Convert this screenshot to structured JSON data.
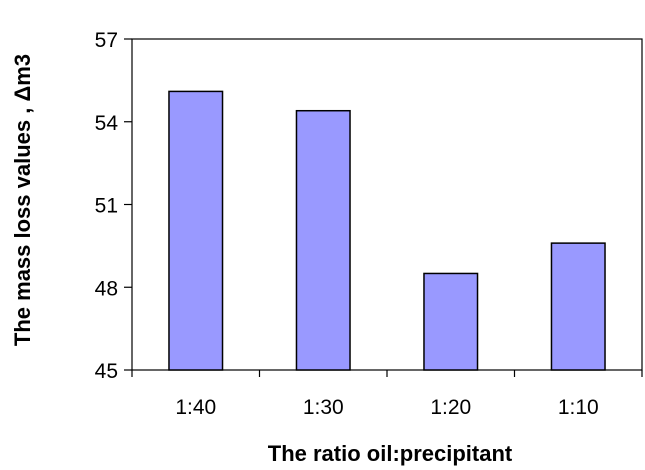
{
  "chart_data": {
    "type": "bar",
    "title": "",
    "xlabel": "The ratio oil:precipitant",
    "ylabel": "The mass loss values , Δm3",
    "categories": [
      "1:40",
      "1:30",
      "1:20",
      "1:10"
    ],
    "values": [
      55.1,
      54.4,
      48.5,
      49.6
    ],
    "ylim": [
      45,
      57
    ],
    "yticks": [
      45,
      48,
      51,
      54,
      57
    ],
    "ytick_labels": [
      "45",
      "48",
      "51",
      "54",
      "57"
    ],
    "grid": false,
    "legend": "none",
    "bar_color": "#9999ff"
  }
}
